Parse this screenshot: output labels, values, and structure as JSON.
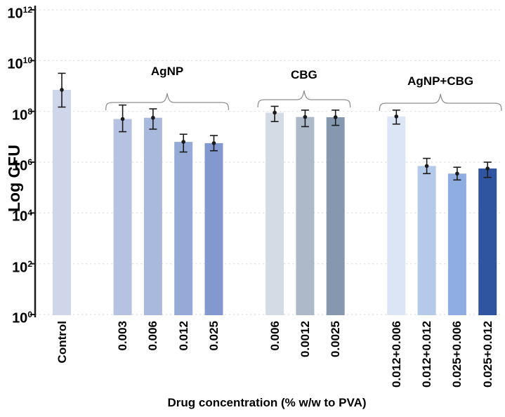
{
  "chart_data": {
    "type": "bar",
    "title": "",
    "ylabel": "Log CFU",
    "xlabel": "Drug concentration (% w/w to PVA)",
    "yscale": "log",
    "ylim": [
      1,
      1000000000000
    ],
    "ytick_exponents": [
      0,
      2,
      4,
      6,
      8,
      10,
      12
    ],
    "grid": "dashed horizontal gridlines at each decade",
    "legend": "none",
    "groups": [
      {
        "name": "",
        "bars": [
          {
            "label": "Control",
            "log10_cfu": 8.85,
            "err_lo": 8.17,
            "err_hi": 9.5,
            "color": "#cfd6ea"
          }
        ]
      },
      {
        "name": "AgNP",
        "bars": [
          {
            "label": "0.003",
            "log10_cfu": 7.7,
            "err_lo": 7.2,
            "err_hi": 8.25,
            "color": "#b5c2e2"
          },
          {
            "label": "0.006",
            "log10_cfu": 7.75,
            "err_lo": 7.3,
            "err_hi": 8.1,
            "color": "#a9b9dd"
          },
          {
            "label": "0.012",
            "log10_cfu": 6.8,
            "err_lo": 6.4,
            "err_hi": 7.1,
            "color": "#96aad7"
          },
          {
            "label": "0.025",
            "log10_cfu": 6.75,
            "err_lo": 6.45,
            "err_hi": 7.05,
            "color": "#8498d0"
          }
        ]
      },
      {
        "name": "CBG",
        "bars": [
          {
            "label": "0.006",
            "log10_cfu": 7.95,
            "err_lo": 7.6,
            "err_hi": 8.2,
            "color": "#d5dbe5"
          },
          {
            "label": "0.0012",
            "log10_cfu": 7.78,
            "err_lo": 7.4,
            "err_hi": 8.05,
            "color": "#adb9c9"
          },
          {
            "label": "0.0025",
            "log10_cfu": 7.77,
            "err_lo": 7.45,
            "err_hi": 8.05,
            "color": "#8598b0"
          }
        ]
      },
      {
        "name": "AgNP+CBG",
        "bars": [
          {
            "label": "0.012+0.006",
            "log10_cfu": 7.8,
            "err_lo": 7.5,
            "err_hi": 8.05,
            "color": "#dce5f6"
          },
          {
            "label": "0.012+0.012",
            "log10_cfu": 5.85,
            "err_lo": 5.55,
            "err_hi": 6.15,
            "color": "#b5c9eb"
          },
          {
            "label": "0.025+0.006",
            "log10_cfu": 5.55,
            "err_lo": 5.3,
            "err_hi": 5.8,
            "color": "#8fade0"
          },
          {
            "label": "0.025+0.012",
            "log10_cfu": 5.75,
            "err_lo": 5.4,
            "err_hi": 6.0,
            "color": "#2f55a0"
          }
        ]
      }
    ],
    "style_colors": {
      "axis": "#1a1a1a",
      "gridline": "#dfdfe4",
      "error_bar": "#1a1a1a",
      "brace": "#8f8f8f"
    }
  }
}
